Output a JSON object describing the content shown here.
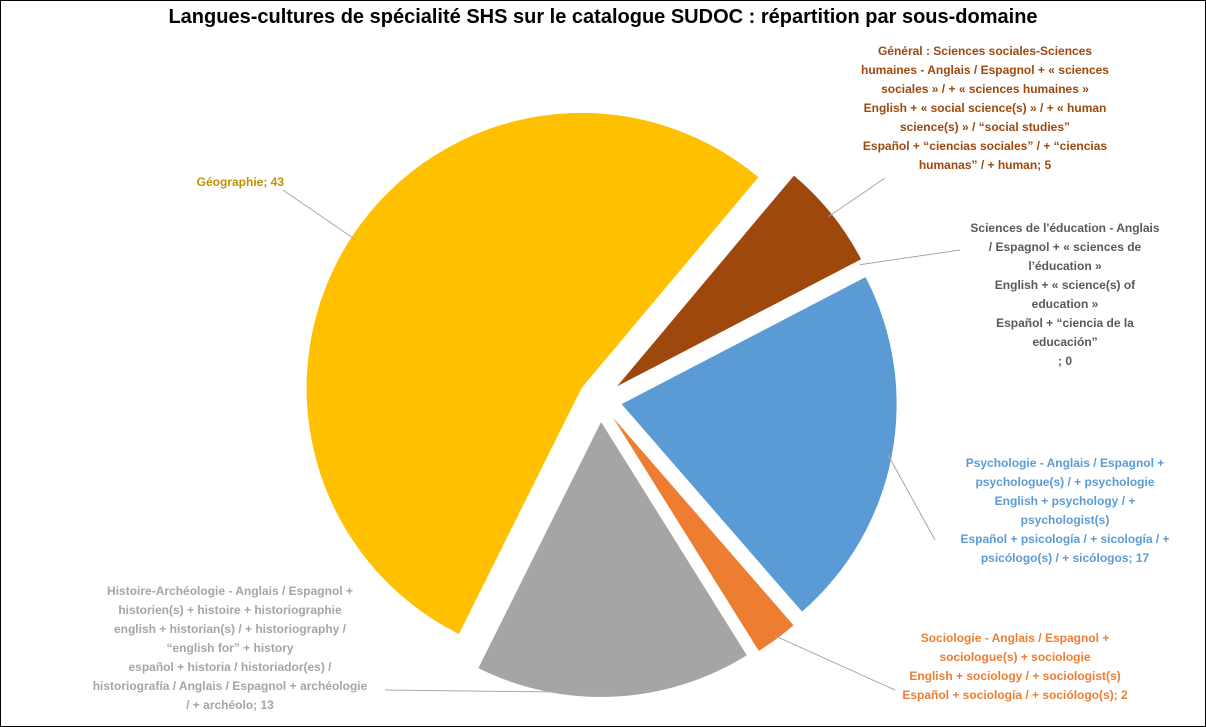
{
  "chart_data": {
    "type": "pie",
    "title": "Langues-cultures de spécialité SHS sur le catalogue SUDOC : répartition par sous-domaine",
    "labels": [
      "Géographie; 43",
      "Général : Sciences sociales-Sciences\nhumaines - Anglais / Espagnol + « sciences\nsociales » / + « sciences humaines »\nEnglish + « social science(s) » / + « human\nscience(s) » / “social studies”\nEspañol + “ciencias sociales” / + “ciencias\nhumanas” / + human; 5",
      "Sciences de l'éducation - Anglais\n/ Espagnol + « sciences de\nl’éducation »\nEnglish + « science(s) of\neducation »\nEspañol + “ciencia de la\neducación”\n; 0",
      "Psychologie - Anglais / Espagnol +\npsychologue(s) / + psychologie\nEnglish + psychology / +\npsychologist(s)\nEspañol + psicología / + sicología / +\npsicólogo(s) / + sicólogos; 17",
      "Sociologie - Anglais / Espagnol +\nsociologue(s) + sociologie\nEnglish + sociology / + sociologist(s)\nEspañol + sociología / + sociólogo(s); 2",
      "Histoire-Archéologie - Anglais / Espagnol +\nhistorien(s) + histoire + historiographie\nenglish + historian(s) / + historiography /\n“english for” + history\nespañol + historia / historiador(es) /\nhistoriografía / Anglais / Espagnol + archéologie\n/ + archéolo; 13"
    ],
    "values": [
      43,
      5,
      0,
      17,
      2,
      13
    ],
    "colors": [
      "#FFC000",
      "#9E480E",
      "#264478",
      "#5B9BD5",
      "#ED7D31",
      "#A5A5A5"
    ],
    "label_colors": [
      "#BF9000",
      "#9E480E",
      "#595959",
      "#5B9BD5",
      "#ED7D31",
      "#A5A5A5"
    ]
  }
}
